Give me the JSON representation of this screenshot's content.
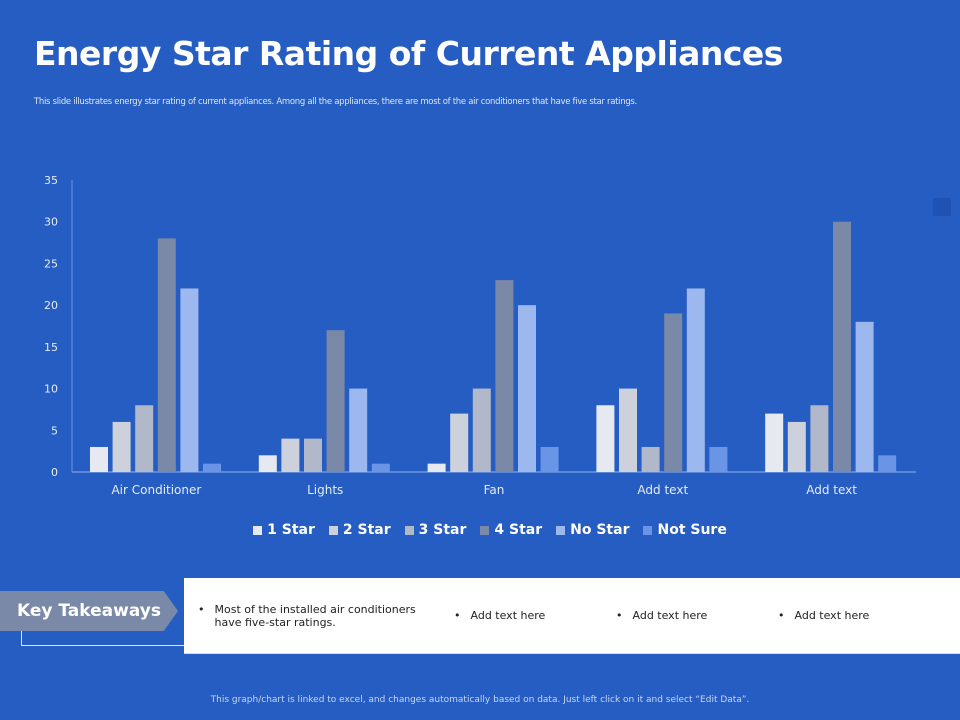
{
  "title": "Energy Star Rating of Current Appliances",
  "subtitle": "This slide illustrates energy star rating of current appliances. Among all the appliances, there are most of the air conditioners that have five star ratings.",
  "chart_data": {
    "type": "bar",
    "categories": [
      "Air Conditioner",
      "Lights",
      "Fan",
      "Add text",
      "Add text"
    ],
    "series": [
      {
        "name": "1 Star",
        "values": [
          3,
          2,
          1,
          8,
          7
        ],
        "color": "#e6e9f0"
      },
      {
        "name": "2 Star",
        "values": [
          6,
          4,
          7,
          10,
          6
        ],
        "color": "#ccd1dc"
      },
      {
        "name": "3 Star",
        "values": [
          8,
          4,
          10,
          3,
          8
        ],
        "color": "#b0b8c9"
      },
      {
        "name": "4 Star",
        "values": [
          28,
          17,
          23,
          19,
          30
        ],
        "color": "#7a89a8"
      },
      {
        "name": "No Star",
        "values": [
          22,
          10,
          20,
          22,
          18
        ],
        "color": "#9db7ef"
      },
      {
        "name": "Not Sure",
        "values": [
          1,
          1,
          3,
          3,
          2
        ],
        "color": "#6a95e6"
      }
    ],
    "ylim": [
      0,
      35
    ],
    "yticks": [
      "0",
      "5",
      "10",
      "15",
      "20",
      "25",
      "30",
      "35"
    ],
    "grid": false,
    "legend": "bottom"
  },
  "takeaways": {
    "label": "Key Takeaways",
    "items": [
      "Most of the installed air conditioners have five-star ratings.",
      "Add text here",
      "Add text here",
      "Add text here"
    ]
  },
  "footer": "This graph/chart is linked to excel, and changes automatically based on data. Just left click on it and select “Edit Data”."
}
